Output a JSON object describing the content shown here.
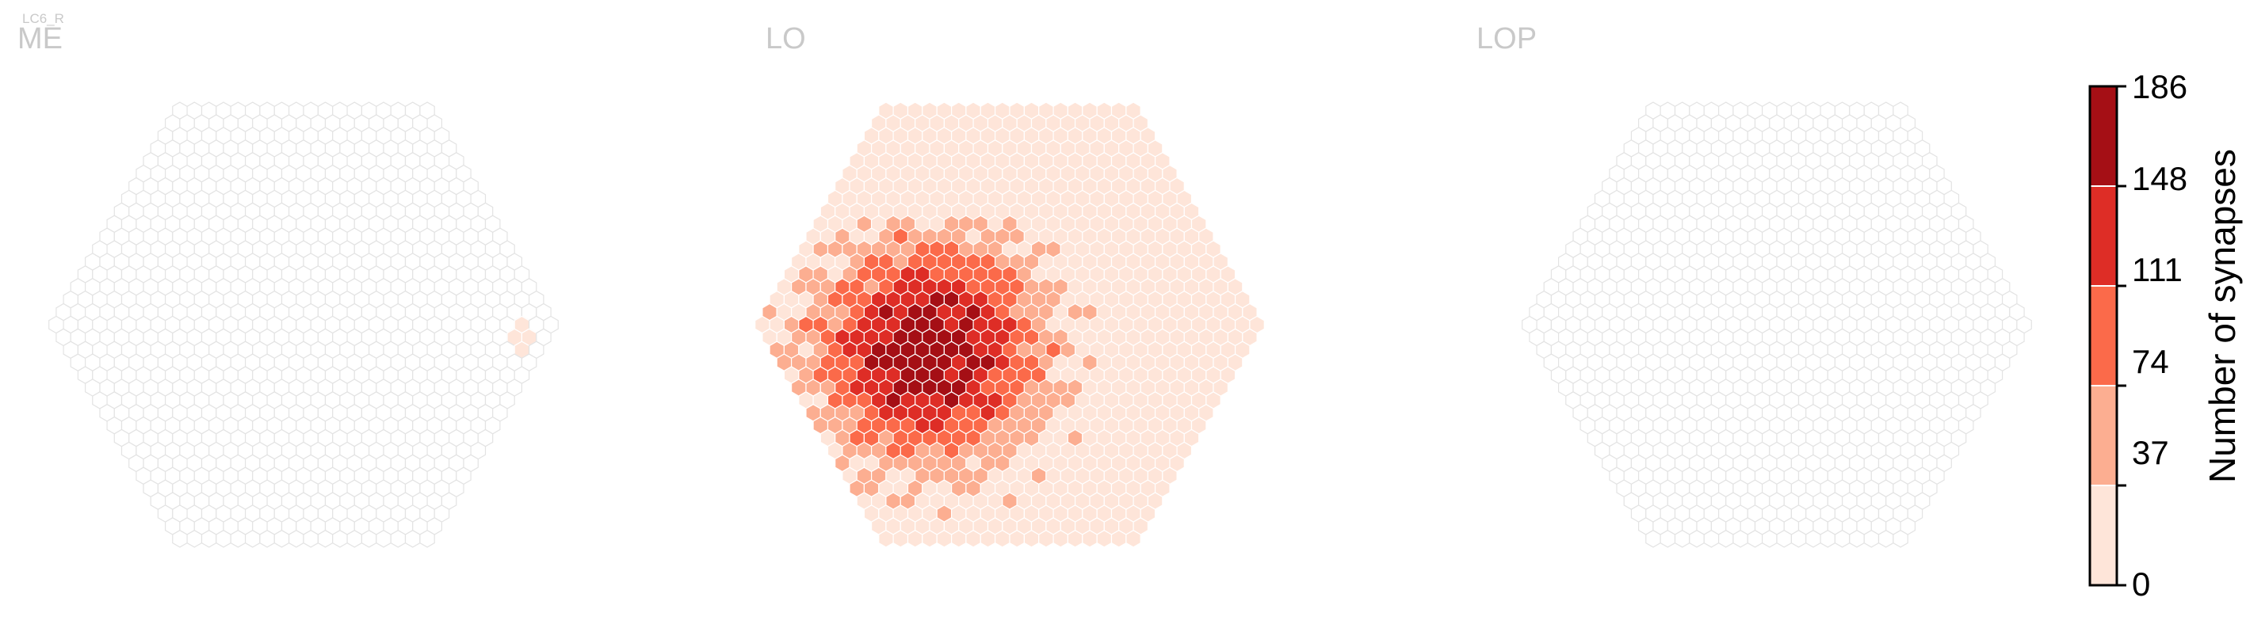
{
  "cell_type": "LC6_R",
  "panels": [
    {
      "title": "ME"
    },
    {
      "title": "LO"
    },
    {
      "title": "LOP"
    }
  ],
  "colorbar": {
    "label": "Number of synapses",
    "ticks": [
      "0",
      "37",
      "74",
      "111",
      "148",
      "186"
    ],
    "min": 0,
    "max": 186,
    "colors": [
      "#fee5d9",
      "#fcae91",
      "#fb6a4a",
      "#de2d26",
      "#a50f15"
    ]
  },
  "colors": {
    "empty_fill": "#ffffff",
    "empty_stroke": "#e3e3e3",
    "missing_fill": "#cccccc",
    "title": "#c9c9c9"
  },
  "chart_data": [
    {
      "type": "heatmap",
      "title": "ME",
      "value_label": "Number of synapses",
      "vmin": 0,
      "vmax": 186,
      "grid_radius": 17,
      "background": "empty columns",
      "cells": [
        {
          "q": 15,
          "r": 0,
          "value": 18
        },
        {
          "q": 15,
          "r": 1,
          "value": 12
        },
        {
          "q": 14,
          "r": 1,
          "value": 9
        },
        {
          "q": 14,
          "r": 2,
          "value": 6
        }
      ]
    },
    {
      "type": "heatmap",
      "title": "LO",
      "value_label": "Number of synapses",
      "vmin": 0,
      "vmax": 186,
      "grid_radius": 17,
      "description_note": "values concentrated on left-center, decreasing toward right and top",
      "peak_region": {
        "q": -6,
        "r": 2,
        "value": 175
      },
      "min_value": 2
    },
    {
      "type": "heatmap",
      "title": "LOP",
      "value_label": "Number of synapses",
      "vmin": 0,
      "vmax": 186,
      "grid_radius": 17,
      "background": "empty columns",
      "cells": []
    }
  ]
}
